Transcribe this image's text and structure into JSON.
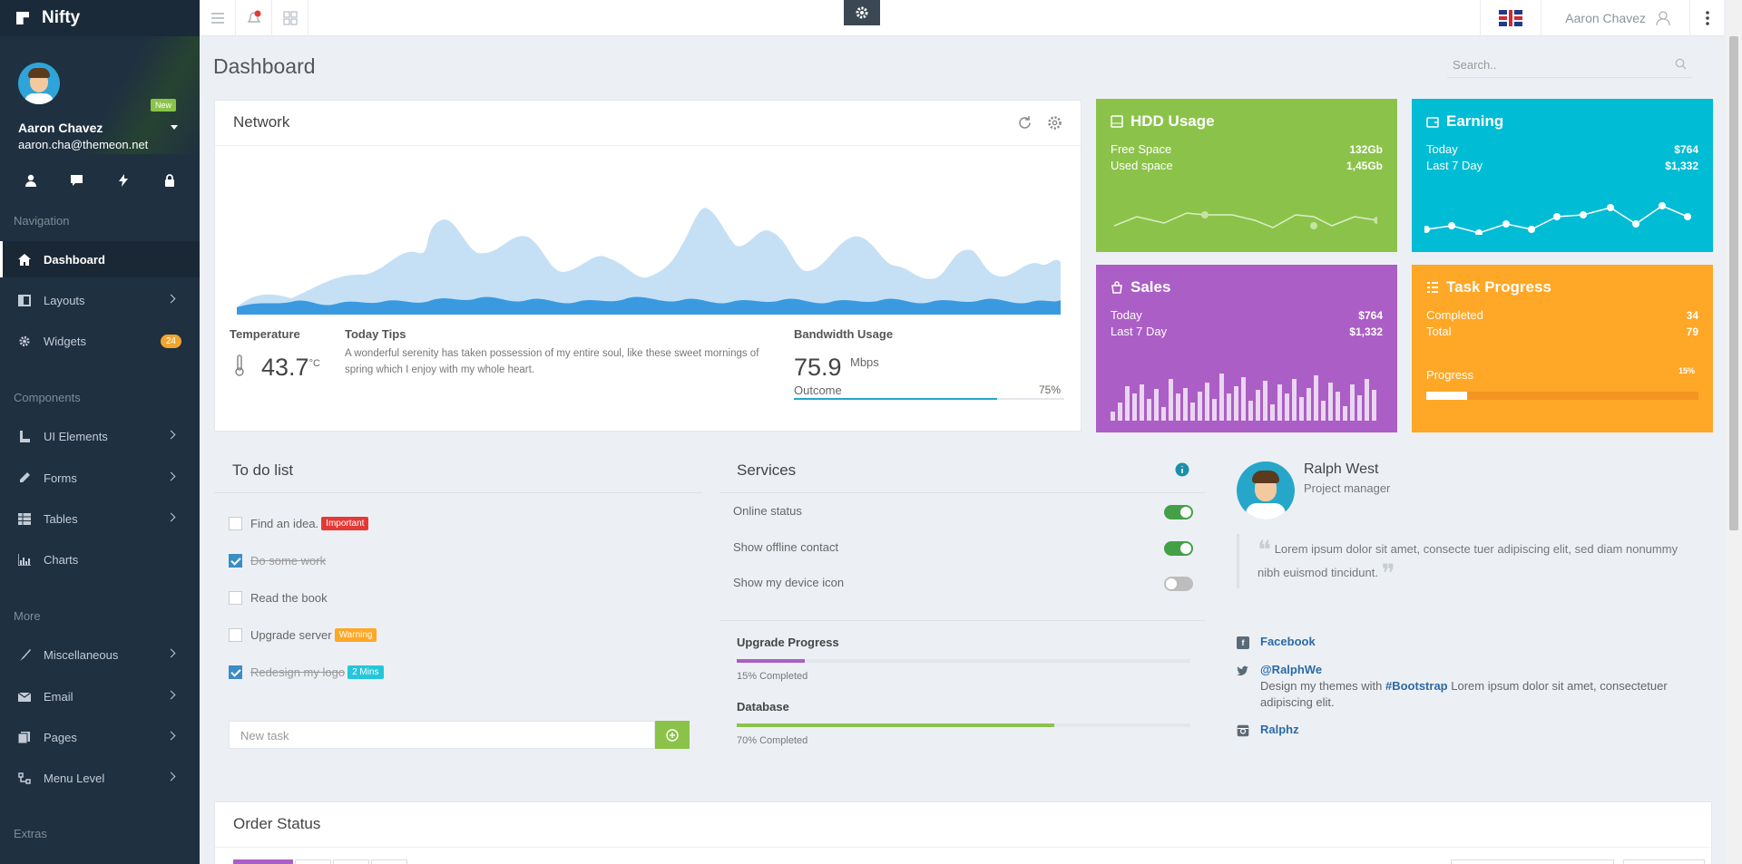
{
  "app": {
    "name": "Nifty"
  },
  "sidebar": {
    "badge_new": "New",
    "user_name": "Aaron Chavez",
    "user_email": "aaron.cha@themeon.net",
    "quick_icons": [
      "user-icon",
      "chat-icon",
      "bolt-icon",
      "lock-icon"
    ],
    "sections": {
      "navigation": "Navigation",
      "components": "Components",
      "more": "More",
      "extras": "Extras"
    },
    "items": [
      {
        "label": "Dashboard",
        "icon": "home-icon"
      },
      {
        "label": "Layouts",
        "icon": "layout-icon"
      },
      {
        "label": "Widgets",
        "icon": "gear-icon",
        "count": "24"
      },
      {
        "label": "UI Elements",
        "icon": "ui-icon"
      },
      {
        "label": "Forms",
        "icon": "pencil-icon"
      },
      {
        "label": "Tables",
        "icon": "table-icon"
      },
      {
        "label": "Charts",
        "icon": "chart-icon"
      },
      {
        "label": "Miscellaneous",
        "icon": "brush-icon"
      },
      {
        "label": "Email",
        "icon": "mail-icon"
      },
      {
        "label": "Pages",
        "icon": "pages-icon"
      },
      {
        "label": "Menu Level",
        "icon": "tree-icon"
      }
    ]
  },
  "topbar": {
    "user": "Aaron Chavez"
  },
  "header": {
    "title": "Dashboard",
    "search_placeholder": "Search.."
  },
  "network": {
    "title": "Network",
    "temperature_label": "Temperature",
    "temperature_value": "43.7",
    "temperature_unit": "°C",
    "tips_label": "Today Tips",
    "tips_text": "A wonderful serenity has taken possession of my entire soul, like these sweet mornings of spring which I enjoy with my whole heart.",
    "bandwidth_label": "Bandwidth Usage",
    "bandwidth_value": "75.9",
    "bandwidth_unit": "Mbps",
    "outcome_label": "Outcome",
    "outcome_pct": "75%",
    "outcome_fraction": 0.75
  },
  "tiles": {
    "hdd": {
      "title": "HDD Usage",
      "r1_label": "Free Space",
      "r1_value": "132Gb",
      "r2_label": "Used space",
      "r2_value": "1,45Gb",
      "color": "#8bc34a"
    },
    "earning": {
      "title": "Earning",
      "r1_label": "Today",
      "r1_value": "$764",
      "r2_label": "Last 7 Day",
      "r2_value": "$1,332",
      "color": "#00bcd4"
    },
    "sales": {
      "title": "Sales",
      "r1_label": "Today",
      "r1_value": "$764",
      "r2_label": "Last 7 Day",
      "r2_value": "$1,332",
      "color": "#ab5ec5"
    },
    "task": {
      "title": "Task Progress",
      "r1_label": "Completed",
      "r1_value": "34",
      "r2_label": "Total",
      "r2_value": "79",
      "progress_label": "Progress",
      "progress_pct": "15%",
      "progress_fraction": 0.15,
      "color": "#ffa726"
    }
  },
  "todo": {
    "title": "To do list",
    "items": [
      {
        "label": "Find an idea.",
        "done": false,
        "tag": "Important",
        "tag_color": "#e53935"
      },
      {
        "label": "Do some work",
        "done": true
      },
      {
        "label": "Read the book",
        "done": false
      },
      {
        "label": "Upgrade server",
        "done": false,
        "tag": "Warning",
        "tag_color": "#ffa726"
      },
      {
        "label": "Redesign my logo",
        "done": true,
        "tag": "2 Mins",
        "tag_color": "#26c6da"
      }
    ],
    "new_task_placeholder": "New task"
  },
  "services": {
    "title": "Services",
    "items": [
      {
        "label": "Online status",
        "on": true
      },
      {
        "label": "Show offline contact",
        "on": true
      },
      {
        "label": "Show my device icon",
        "on": false
      }
    ],
    "upgrade_title": "Upgrade Progress",
    "upgrade_sub": "15% Completed",
    "upgrade_fraction": 0.15,
    "db_title": "Database",
    "db_sub": "70% Completed",
    "db_fraction": 0.7
  },
  "profile": {
    "name": "Ralph West",
    "role": "Project manager",
    "quote": "Lorem ipsum dolor sit amet, consecte tuer adipiscing elit, sed diam nonummy nibh euismod tincidunt.",
    "facebook": "Facebook",
    "twitter": "@RalphWe",
    "tweet_pre": "Design my themes with ",
    "tweet_tag": "#Bootstrap",
    "tweet_post": " Lorem ipsum dolor sit amet, consectetuer adipiscing elit.",
    "instagram": "Ralphz"
  },
  "order": {
    "title": "Order Status"
  }
}
